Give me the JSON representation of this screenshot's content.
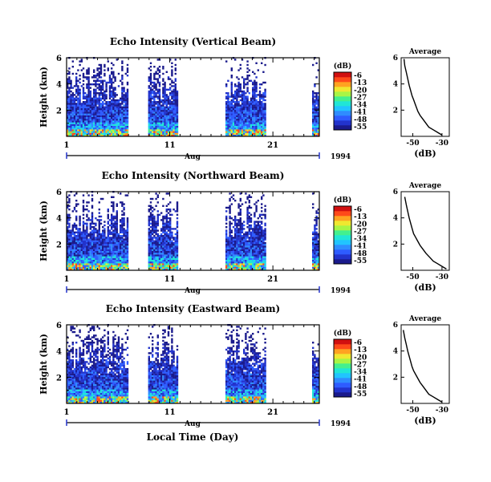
{
  "colormap": [
    "#1a1a8c",
    "#2233cc",
    "#2e5cff",
    "#2f8cff",
    "#21c4ff",
    "#20e6d6",
    "#43f08e",
    "#a8f545",
    "#f0e830",
    "#ffa321",
    "#ff4a1a",
    "#d11010"
  ],
  "footer": {
    "year": "1994",
    "month": "Aug",
    "xlabel": "Local Time (Day)"
  },
  "colorbar": {
    "unit": "(dB)",
    "ticks": [
      "-6",
      "-13",
      "-20",
      "-27",
      "-34",
      "-41",
      "-48",
      "-55"
    ]
  },
  "chart_data": [
    {
      "type": "heatmap",
      "title": "Echo Intensity (Vertical Beam)",
      "ylabel": "Height (km)",
      "yticks": [
        "2",
        "4",
        "6"
      ],
      "ylim": [
        0,
        6
      ],
      "xticks": [
        "1",
        "11",
        "21"
      ],
      "xlim": [
        1,
        25.5
      ],
      "data_intervals_day": [
        [
          1.0,
          6.9
        ],
        [
          8.9,
          11.7
        ],
        [
          16.4,
          20.2
        ],
        [
          24.8,
          25.4
        ]
      ],
      "colorbar_ticks": [
        "-6",
        "-13",
        "-20",
        "-27",
        "-34",
        "-41",
        "-48",
        "-55"
      ],
      "average": {
        "title": "Average",
        "xlabel": "(dB)",
        "xticks": [
          "-50",
          "-30"
        ],
        "yticks": [
          "2",
          "4",
          "6"
        ],
        "x_db": [
          -30,
          -33,
          -36,
          -39,
          -41,
          -43,
          -45,
          -46.5,
          -47.5,
          -48.5,
          -49.5,
          -50.5,
          -51.5,
          -52.5,
          -53.5,
          -54.5,
          -55.5,
          -56
        ],
        "height_km": [
          0.1,
          0.3,
          0.5,
          0.7,
          1.0,
          1.3,
          1.6,
          1.9,
          2.2,
          2.5,
          2.8,
          3.1,
          3.5,
          3.9,
          4.4,
          4.9,
          5.4,
          5.9
        ]
      }
    },
    {
      "type": "heatmap",
      "title": "Echo Intensity (Northward Beam)",
      "ylabel": "Height (km)",
      "yticks": [
        "2",
        "4",
        "6"
      ],
      "ylim": [
        0,
        6
      ],
      "xticks": [
        "1",
        "11",
        "21"
      ],
      "xlim": [
        1,
        25.5
      ],
      "data_intervals_day": [
        [
          1.0,
          6.9
        ],
        [
          8.9,
          11.7
        ],
        [
          16.4,
          20.2
        ],
        [
          24.8,
          25.4
        ]
      ],
      "colorbar_ticks": [
        "-6",
        "-13",
        "-20",
        "-27",
        "-34",
        "-41",
        "-48",
        "-55"
      ],
      "average": {
        "title": "Average",
        "xlabel": "(dB)",
        "xticks": [
          "-50",
          "-30"
        ],
        "yticks": [
          "2",
          "4",
          "6"
        ],
        "x_db": [
          -27,
          -30,
          -33,
          -36,
          -38.5,
          -41,
          -43,
          -45,
          -46.5,
          -48,
          -49.5,
          -50.5,
          -51.5,
          -52.5,
          -53.5,
          -54.5,
          -55.5
        ],
        "height_km": [
          0.1,
          0.3,
          0.5,
          0.7,
          1.0,
          1.3,
          1.6,
          1.9,
          2.2,
          2.5,
          2.8,
          3.2,
          3.6,
          4.0,
          4.5,
          5.0,
          5.6
        ]
      }
    },
    {
      "type": "heatmap",
      "title": "Echo Intensity (Eastward Beam)",
      "ylabel": "Height (km)",
      "yticks": [
        "2",
        "4",
        "6"
      ],
      "ylim": [
        0,
        6
      ],
      "xticks": [
        "1",
        "11",
        "21"
      ],
      "xlim": [
        1,
        25.5
      ],
      "data_intervals_day": [
        [
          1.0,
          6.9
        ],
        [
          8.9,
          11.7
        ],
        [
          16.4,
          20.2
        ],
        [
          24.8,
          25.4
        ]
      ],
      "colorbar_ticks": [
        "-6",
        "-13",
        "-20",
        "-27",
        "-34",
        "-41",
        "-48",
        "-55"
      ],
      "average": {
        "title": "Average",
        "xlabel": "(dB)",
        "xticks": [
          "-50",
          "-30"
        ],
        "yticks": [
          "2",
          "4",
          "6"
        ],
        "x_db": [
          -30,
          -33,
          -36,
          -39,
          -41,
          -43,
          -45,
          -46.5,
          -48,
          -49.5,
          -50.5,
          -51.5,
          -52.5,
          -53.5,
          -54.5,
          -55.5,
          -56.5
        ],
        "height_km": [
          0.1,
          0.3,
          0.5,
          0.7,
          1.0,
          1.3,
          1.6,
          1.9,
          2.2,
          2.5,
          2.8,
          3.2,
          3.6,
          4.0,
          4.5,
          5.0,
          5.6
        ]
      }
    }
  ]
}
